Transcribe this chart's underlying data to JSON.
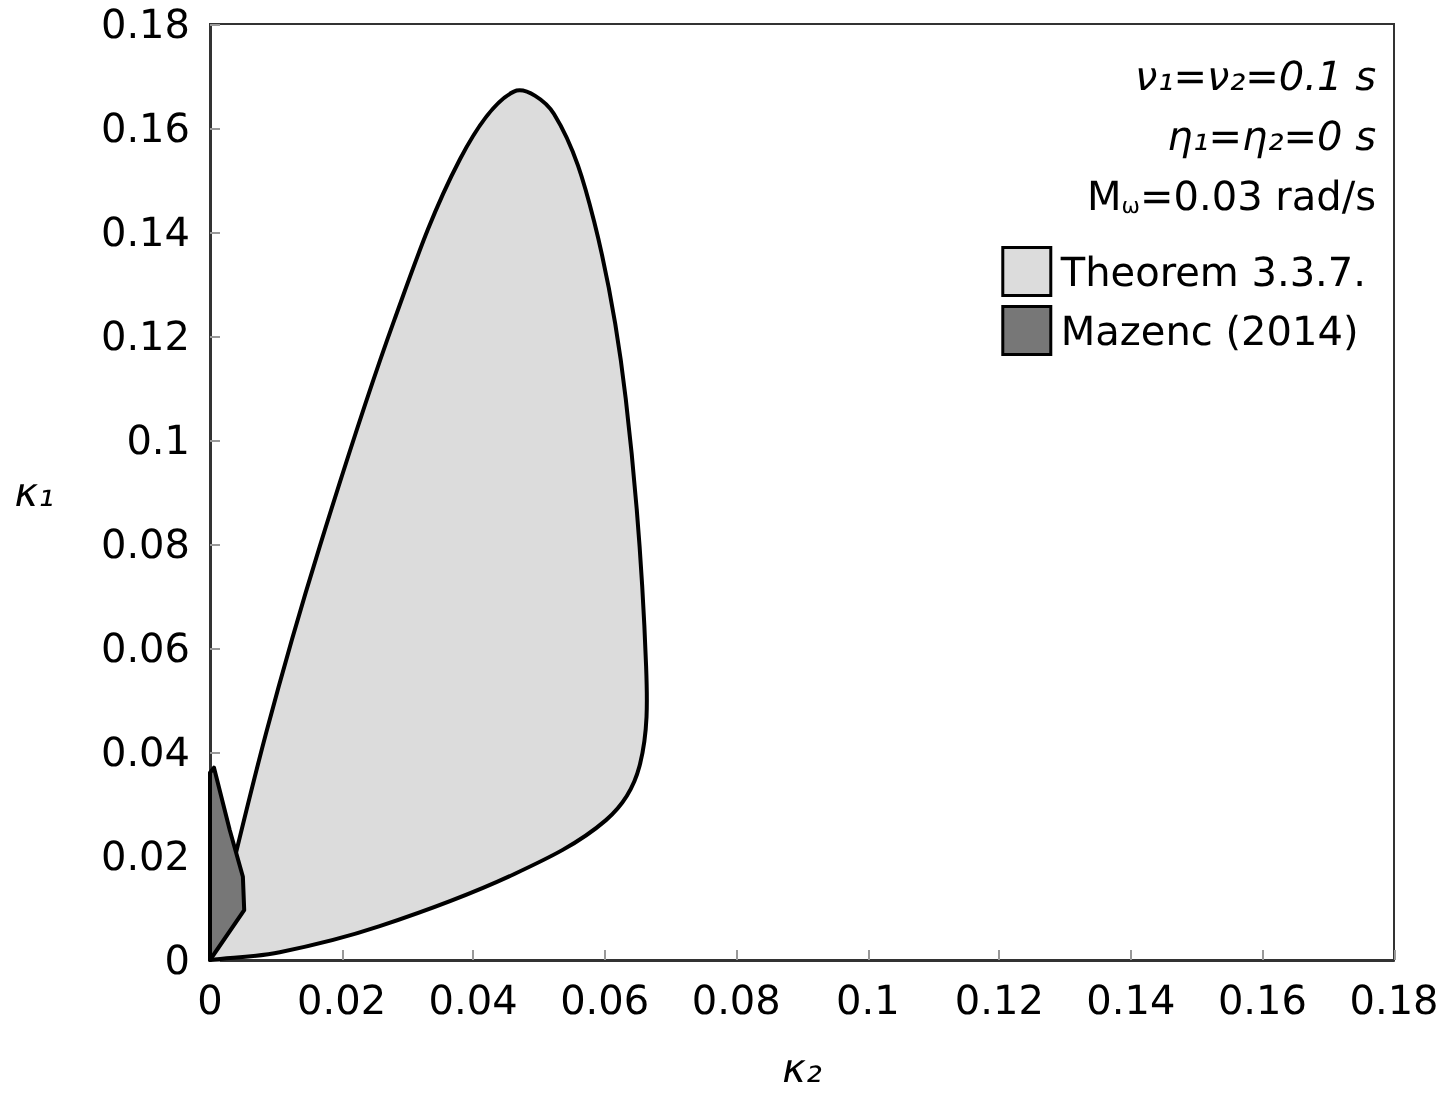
{
  "chart_data": {
    "type": "area",
    "xlabel": "κ₂",
    "ylabel": "κ₁",
    "xlim": [
      0,
      0.18
    ],
    "ylim": [
      0,
      0.18
    ],
    "xticks": [
      0,
      0.02,
      0.04,
      0.06,
      0.08,
      0.1,
      0.12,
      0.14,
      0.16,
      0.18
    ],
    "yticks": [
      0,
      0.02,
      0.04,
      0.06,
      0.08,
      0.1,
      0.12,
      0.14,
      0.16,
      0.18
    ],
    "grid": false,
    "legend": "top right",
    "annotations": [
      "ν₁=ν₂=0.1 s",
      "η₁=η₂=0 s",
      "M$_{ω}$=0.03 rad/s"
    ],
    "series": [
      {
        "name": "Theorem 3.3.7.",
        "color": "#dcdcdc",
        "x": [
          0,
          0.0085,
          0.0167,
          0.028,
          0.038,
          0.0462,
          0.0523,
          0.0584,
          0.0632,
          0.0663,
          0.0653,
          0.0602,
          0.0462,
          0.0258,
          0.0106,
          0
        ],
        "values": [
          0,
          0.0435,
          0.0796,
          0.123,
          0.154,
          0.167,
          0.1627,
          0.142,
          0.108,
          0.0565,
          0.0373,
          0.0269,
          0.0165,
          0.0065,
          0.0015,
          0
        ]
      },
      {
        "name": "Mazenc (2014)",
        "color": "#777777",
        "x": [
          0,
          0,
          0.0006,
          0.003,
          0.005,
          0.0052,
          0
        ],
        "values": [
          0,
          0.036,
          0.037,
          0.025,
          0.016,
          0.0096,
          0
        ]
      }
    ]
  }
}
